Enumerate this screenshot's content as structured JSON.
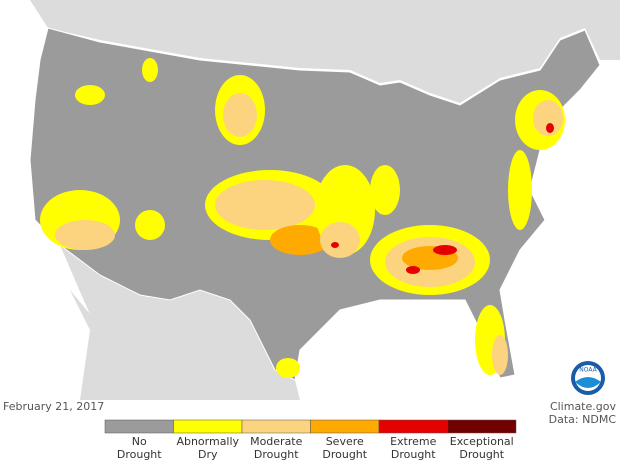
{
  "date": "February 21, 2017",
  "credits": [
    "Climate.gov",
    "Data: NDMC"
  ],
  "logo": "NOAA",
  "legend": [
    {
      "label": [
        "No",
        "Drought"
      ],
      "color": "#9b9b9b"
    },
    {
      "label": [
        "Abnormally",
        "Dry"
      ],
      "color": "#ffff00"
    },
    {
      "label": [
        "Moderate",
        "Drought"
      ],
      "color": "#fcd37f"
    },
    {
      "label": [
        "Severe",
        "Drought"
      ],
      "color": "#ffaa00"
    },
    {
      "label": [
        "Extreme",
        "Drought"
      ],
      "color": "#e60000"
    },
    {
      "label": [
        "Exceptional",
        "Drought"
      ],
      "color": "#730000"
    }
  ]
}
